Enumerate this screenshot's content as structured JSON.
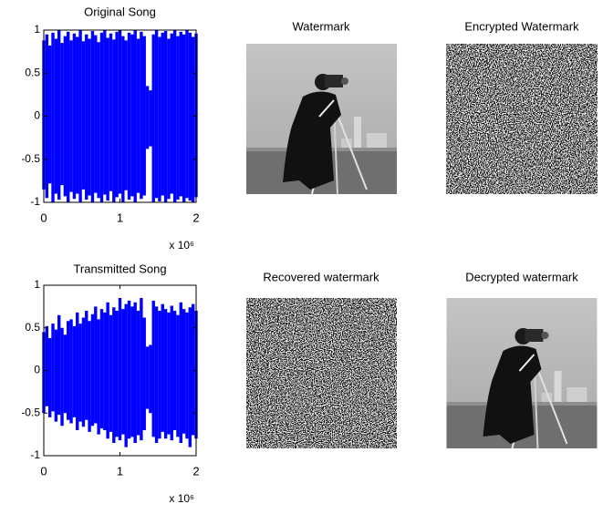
{
  "chart_data": [
    {
      "type": "signal",
      "title": "Original Song",
      "x_multiplier": "x 10⁶",
      "xlim": [
        0,
        2
      ],
      "xticks": [
        0,
        1,
        2
      ],
      "ylim": [
        -1,
        1
      ],
      "yticks": [
        1,
        0.5,
        0,
        -0.5,
        -1
      ],
      "x": [
        0,
        0.04,
        0.08,
        0.12,
        0.16,
        0.2,
        0.24,
        0.28,
        0.32,
        0.36,
        0.4,
        0.44,
        0.48,
        0.52,
        0.56,
        0.6,
        0.64,
        0.68,
        0.72,
        0.76,
        0.8,
        0.84,
        0.88,
        0.92,
        0.96,
        1,
        1.04,
        1.08,
        1.12,
        1.16,
        1.2,
        1.24,
        1.28,
        1.32,
        1.36,
        1.4,
        1.44,
        1.48,
        1.52,
        1.56,
        1.6,
        1.64,
        1.68,
        1.72,
        1.76,
        1.8,
        1.84,
        1.88,
        1.92,
        1.96,
        2
      ],
      "series": [
        {
          "color": "#0000ff",
          "values": [
            0.88,
            0.95,
            0.82,
            0.97,
            0.9,
            1,
            0.85,
            0.93,
            0.98,
            0.88,
            0.96,
            0.92,
            1,
            0.87,
            0.95,
            0.9,
            0.99,
            0.94,
            0.86,
            0.97,
            1,
            0.91,
            0.96,
            0.89,
            0.98,
            1,
            0.93,
            0.88,
            0.97,
            0.95,
            1,
            0.9,
            0.98,
            0.93,
            0.35,
            0.3,
            0.95,
            1,
            0.92,
            0.97,
            0.99,
            0.9,
            0.96,
            1,
            0.93,
            0.98,
            0.95,
            1,
            0.97,
            0.92,
            0.96
          ]
        },
        {
          "color": "#0000ff",
          "values": [
            -0.85,
            -0.95,
            -0.78,
            -1,
            -0.9,
            -0.97,
            -0.8,
            -0.93,
            -1,
            -0.88,
            -0.96,
            -0.9,
            -1,
            -0.85,
            -0.97,
            -0.92,
            -1,
            -0.89,
            -0.95,
            -1,
            -0.91,
            -0.98,
            -0.87,
            -1,
            -0.94,
            -0.9,
            -1,
            -0.86,
            -0.97,
            -0.93,
            -1,
            -0.89,
            -0.96,
            -0.92,
            -0.38,
            -0.35,
            -1,
            -0.95,
            -0.99,
            -0.92,
            -1,
            -0.96,
            -0.9,
            -1,
            -0.97,
            -0.93,
            -1,
            -0.95,
            -0.98,
            -1,
            -0.94
          ]
        }
      ]
    },
    {
      "type": "signal",
      "title": "Transmitted Song",
      "x_multiplier": "x 10⁶",
      "xlim": [
        0,
        2
      ],
      "xticks": [
        0,
        1,
        2
      ],
      "ylim": [
        -1,
        1
      ],
      "yticks": [
        1,
        0.5,
        0,
        -0.5,
        -1
      ],
      "x": [
        0,
        0.04,
        0.08,
        0.12,
        0.16,
        0.2,
        0.24,
        0.28,
        0.32,
        0.36,
        0.4,
        0.44,
        0.48,
        0.52,
        0.56,
        0.6,
        0.64,
        0.68,
        0.72,
        0.76,
        0.8,
        0.84,
        0.88,
        0.92,
        0.96,
        1,
        1.04,
        1.08,
        1.12,
        1.16,
        1.2,
        1.24,
        1.28,
        1.32,
        1.36,
        1.4,
        1.44,
        1.48,
        1.52,
        1.56,
        1.6,
        1.64,
        1.68,
        1.72,
        1.76,
        1.8,
        1.84,
        1.88,
        1.92,
        1.96,
        2
      ],
      "series": [
        {
          "color": "#0000ff",
          "values": [
            0.45,
            0.52,
            0.38,
            0.55,
            0.48,
            0.65,
            0.5,
            0.42,
            0.58,
            0.6,
            0.52,
            0.68,
            0.55,
            0.62,
            0.7,
            0.58,
            0.66,
            0.75,
            0.6,
            0.72,
            0.68,
            0.8,
            0.65,
            0.74,
            0.7,
            0.85,
            0.72,
            0.78,
            0.82,
            0.75,
            0.8,
            0.7,
            0.85,
            0.62,
            0.28,
            0.3,
            0.82,
            0.75,
            0.7,
            0.78,
            0.72,
            0.68,
            0.76,
            0.7,
            0.65,
            0.8,
            0.72,
            0.68,
            0.74,
            0.78,
            0.7
          ]
        },
        {
          "color": "#0000ff",
          "values": [
            -0.5,
            -0.42,
            -0.55,
            -0.48,
            -0.6,
            -0.52,
            -0.65,
            -0.5,
            -0.58,
            -0.62,
            -0.55,
            -0.7,
            -0.6,
            -0.66,
            -0.58,
            -0.72,
            -0.65,
            -0.62,
            -0.75,
            -0.68,
            -0.7,
            -0.8,
            -0.72,
            -0.85,
            -0.78,
            -0.82,
            -0.75,
            -0.9,
            -0.8,
            -0.78,
            -0.85,
            -0.76,
            -0.82,
            -0.7,
            -0.45,
            -0.5,
            -0.78,
            -0.85,
            -0.8,
            -0.72,
            -0.8,
            -0.75,
            -0.82,
            -0.7,
            -0.78,
            -0.85,
            -0.74,
            -0.8,
            -0.9,
            -0.76,
            -0.8
          ]
        }
      ]
    }
  ],
  "images": [
    {
      "title": "Watermark"
    },
    {
      "title": "Encrypted Watermark"
    },
    {
      "title": "Recovered watermark"
    },
    {
      "title": "Decrypted watermark"
    }
  ]
}
